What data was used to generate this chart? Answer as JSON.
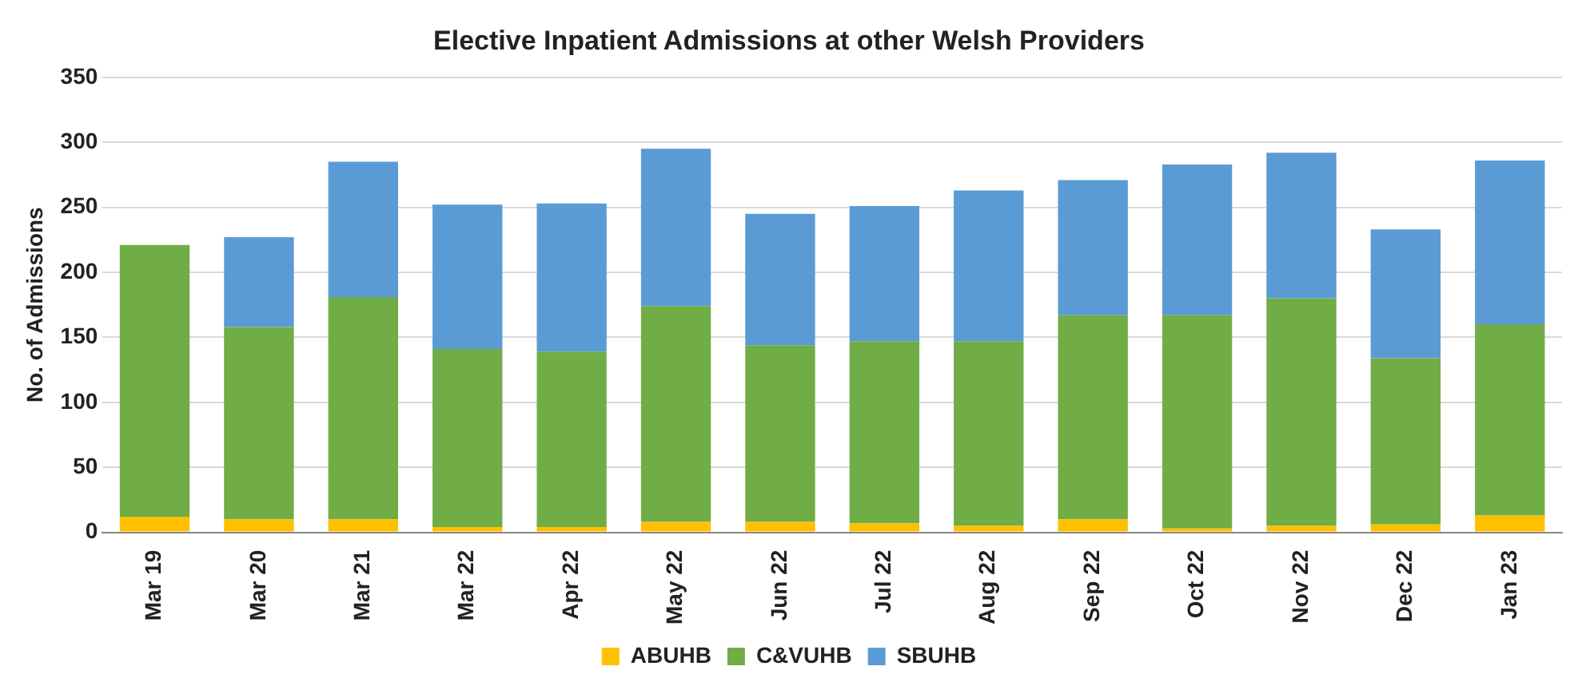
{
  "chart_data": {
    "type": "bar",
    "title": "Elective Inpatient Admissions at other Welsh Providers",
    "ylabel": "No. of Admissions",
    "categories": [
      "Mar 19",
      "Mar 20",
      "Mar 21",
      "Mar 22",
      "Apr 22",
      "May 22",
      "Jun 22",
      "Jul 22",
      "Aug 22",
      "Sep 22",
      "Oct 22",
      "Nov 22",
      "Dec 22",
      "Jan 23"
    ],
    "series": [
      {
        "name": "ABUHB",
        "color": "#ffc000",
        "values": [
          12,
          10,
          10,
          4,
          4,
          8,
          8,
          7,
          5,
          10,
          3,
          5,
          6,
          13
        ]
      },
      {
        "name": "C&VUHB",
        "color": "#70ad47",
        "values": [
          209,
          148,
          171,
          137,
          135,
          166,
          136,
          140,
          142,
          157,
          164,
          175,
          128,
          147
        ]
      },
      {
        "name": "SBUHB",
        "color": "#5b9bd5",
        "values": [
          0,
          69,
          104,
          111,
          114,
          121,
          101,
          104,
          116,
          104,
          116,
          112,
          99,
          126
        ]
      }
    ],
    "stacked": true,
    "ylim": [
      0,
      350
    ],
    "yticks": [
      0,
      50,
      100,
      150,
      200,
      250,
      300,
      350
    ],
    "grid": "y",
    "legend": "bottom"
  }
}
